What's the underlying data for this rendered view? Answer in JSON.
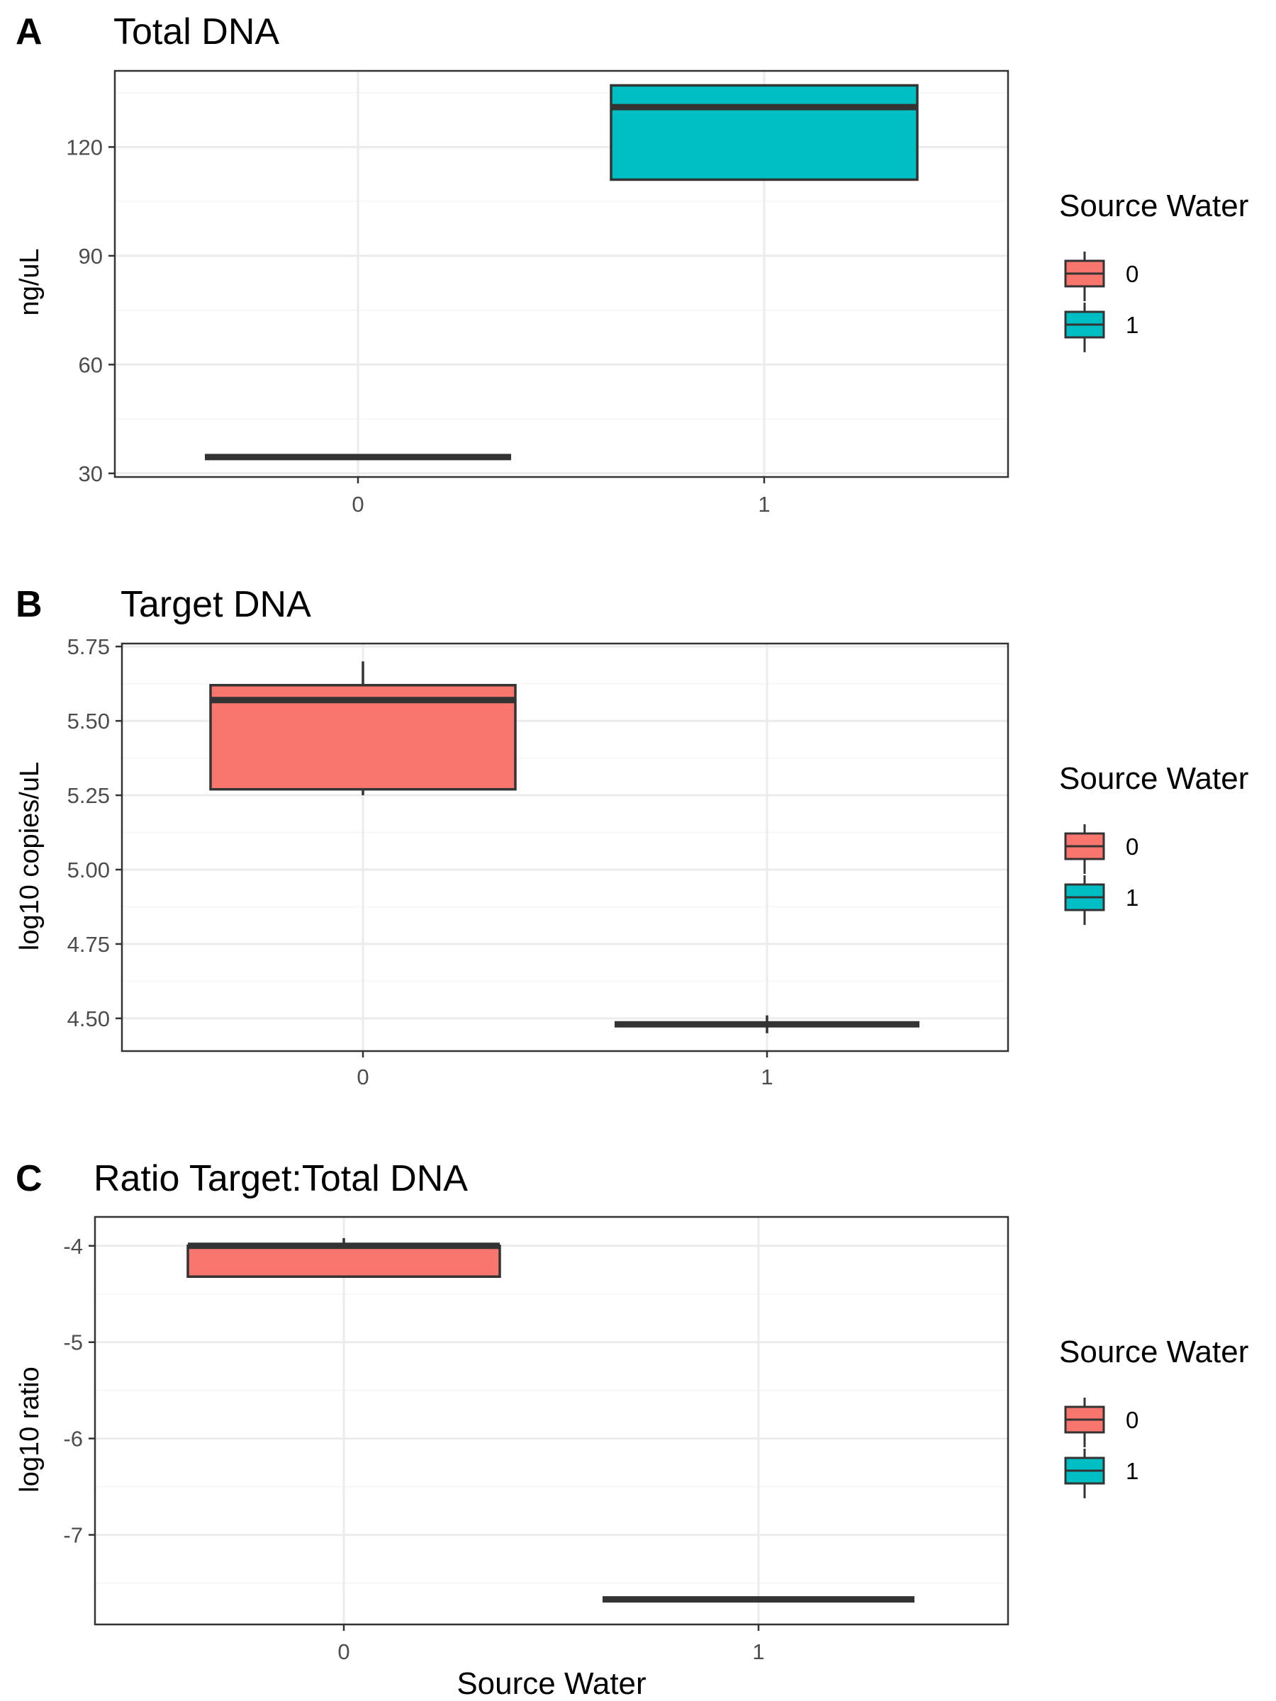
{
  "colors": {
    "group_0": "#F8766D",
    "group_1": "#00BFC4",
    "outline": "#333333",
    "grid_major": "#EBEBEB",
    "grid_minor": "#F5F5F5",
    "panel_border": "#333333"
  },
  "x_axis_title": "Source Water",
  "chart_data": [
    {
      "type": "box",
      "tag": "A",
      "title": "Total DNA",
      "ylabel": "ng/uL",
      "xlabel": "",
      "categories": [
        "0",
        "1"
      ],
      "yticks": [
        30,
        60,
        90,
        120
      ],
      "yticks_labels": [
        "30",
        "60",
        "90",
        "120"
      ],
      "ylim": [
        29,
        141
      ],
      "grid": true,
      "legend": {
        "title": "Source Water",
        "entries": [
          "0",
          "1"
        ],
        "placement": "right"
      },
      "boxes": [
        {
          "category": "0",
          "min": 34.5,
          "q1": 34.5,
          "median": 34.5,
          "q3": 34.5,
          "max": 34.5
        },
        {
          "category": "1",
          "min": 111,
          "q1": 111,
          "median": 131,
          "q3": 137,
          "max": 137
        }
      ]
    },
    {
      "type": "box",
      "tag": "B",
      "title": "Target DNA",
      "ylabel": "log10 copies/uL",
      "xlabel": "",
      "categories": [
        "0",
        "1"
      ],
      "yticks": [
        4.5,
        4.75,
        5.0,
        5.25,
        5.5,
        5.75
      ],
      "yticks_labels": [
        "4.50",
        "4.75",
        "5.00",
        "5.25",
        "5.50",
        "5.75"
      ],
      "ylim": [
        4.39,
        5.76
      ],
      "grid": true,
      "legend": {
        "title": "Source Water",
        "entries": [
          "0",
          "1"
        ],
        "placement": "right"
      },
      "boxes": [
        {
          "category": "0",
          "min": 5.25,
          "q1": 5.27,
          "median": 5.57,
          "q3": 5.62,
          "max": 5.7
        },
        {
          "category": "1",
          "min": 4.45,
          "q1": 4.48,
          "median": 4.48,
          "q3": 4.48,
          "max": 4.51
        }
      ]
    },
    {
      "type": "box",
      "tag": "C",
      "title": "Ratio Target:Total DNA",
      "ylabel": "log10 ratio",
      "xlabel": "Source Water",
      "categories": [
        "0",
        "1"
      ],
      "yticks": [
        -7,
        -6,
        -5,
        -4
      ],
      "yticks_labels": [
        "-7",
        "-6",
        "-5",
        "-4"
      ],
      "ylim": [
        -7.93,
        -3.7
      ],
      "grid": true,
      "legend": {
        "title": "Source Water",
        "entries": [
          "0",
          "1"
        ],
        "placement": "right"
      },
      "boxes": [
        {
          "category": "0",
          "min": -4.33,
          "q1": -4.32,
          "median": -4.0,
          "q3": -4.0,
          "max": -3.92
        },
        {
          "category": "1",
          "min": -7.7,
          "q1": -7.67,
          "median": -7.67,
          "q3": -7.67,
          "max": -7.67
        }
      ]
    }
  ]
}
